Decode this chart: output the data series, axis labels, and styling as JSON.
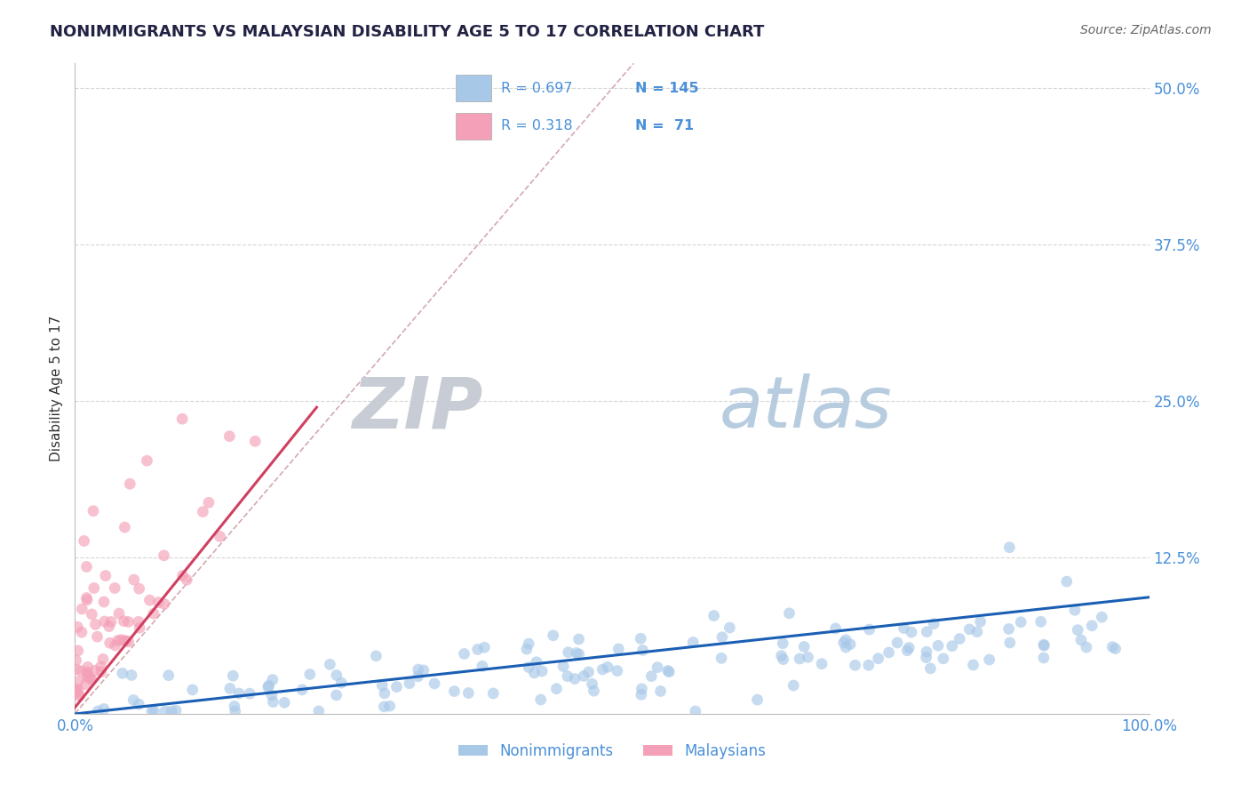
{
  "title": "NONIMMIGRANTS VS MALAYSIAN DISABILITY AGE 5 TO 17 CORRELATION CHART",
  "source_text": "Source: ZipAtlas.com",
  "ylabel": "Disability Age 5 to 17",
  "xlim": [
    0,
    1.0
  ],
  "ylim": [
    0,
    0.52
  ],
  "yticks": [
    0.125,
    0.25,
    0.375,
    0.5
  ],
  "yticklabels": [
    "12.5%",
    "25.0%",
    "37.5%",
    "50.0%"
  ],
  "legend_label1": "Nonimmigrants",
  "legend_label2": "Malaysians",
  "blue_color": "#a8c8e8",
  "pink_color": "#f4a0b8",
  "blue_line_color": "#1a5fb4",
  "pink_line_color": "#d04060",
  "axis_text_color": "#4a90d9",
  "grid_color": "#cccccc",
  "watermark_zip_color": "#c8d8ec",
  "watermark_atlas_color": "#a8c4e4"
}
